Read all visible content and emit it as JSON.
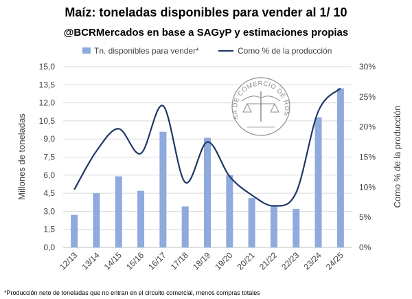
{
  "chart_data": {
    "type": "bar+line",
    "title": "Maíz: toneladas disponibles para vender al 1/ 10",
    "subtitle": "@BCRMercados en base a SAGyP y estimaciones propias",
    "categories": [
      "12/13",
      "13/14",
      "14/15",
      "15/16",
      "16/17",
      "17/18",
      "18/19",
      "19/20",
      "20/21",
      "21/22",
      "22/23",
      "23/24",
      "24/25"
    ],
    "series": [
      {
        "name": "Tn. disponibles para vender*",
        "type": "bar",
        "axis": "left",
        "color": "#8faadc",
        "values": [
          2.7,
          4.5,
          5.9,
          4.7,
          9.6,
          3.4,
          9.1,
          6.0,
          4.1,
          3.5,
          3.2,
          10.8,
          13.2
        ]
      },
      {
        "name": "Como % de la producción",
        "type": "line",
        "axis": "right",
        "color": "#1f3864",
        "values": [
          9.6,
          16.0,
          19.7,
          15.6,
          23.5,
          10.8,
          17.5,
          11.8,
          8.7,
          6.9,
          9.1,
          22.6,
          26.4
        ]
      }
    ],
    "ylabel": "Millones de toneladas",
    "y2label": "Como % de la producción",
    "ylim": [
      0,
      15
    ],
    "y2lim": [
      0,
      30
    ],
    "yticks": [
      "0,0",
      "1,5",
      "3,0",
      "4,5",
      "6,0",
      "7,5",
      "9,0",
      "10,5",
      "12,0",
      "13,5",
      "15,0"
    ],
    "y2ticks": [
      "0%",
      "5%",
      "10%",
      "15%",
      "20%",
      "25%",
      "30%"
    ],
    "grid": true,
    "legend": "top",
    "footnote": "*Producción neto de toneladas que no entran en el circuito comercial, menos compras totales"
  },
  "watermark": {
    "text": "BOLSA DE COMERCIO DE ROSARIO"
  }
}
